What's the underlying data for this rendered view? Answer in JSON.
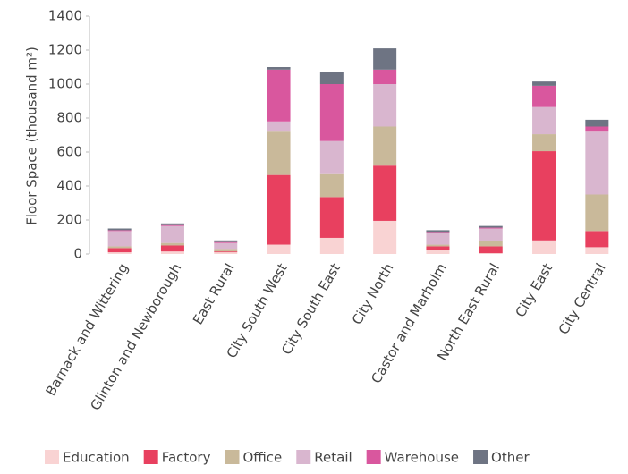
{
  "chart_data": {
    "type": "stacked_bar",
    "ylabel": "Floor Space (thousand m²)",
    "categories": [
      "Barnack and Wittering",
      "Glinton and Newborough",
      "East Rural",
      "City South West",
      "City South East",
      "City North",
      "Castor and Marholm",
      "North East Rural",
      "City East",
      "City Central"
    ],
    "series": [
      {
        "name": "Education",
        "color": "#f9d3d3",
        "values": [
          10,
          15,
          10,
          55,
          95,
          195,
          25,
          5,
          80,
          40
        ]
      },
      {
        "name": "Factory",
        "color": "#e8405f",
        "values": [
          25,
          35,
          5,
          410,
          240,
          325,
          20,
          40,
          525,
          95
        ]
      },
      {
        "name": "Office",
        "color": "#c9b99a",
        "values": [
          10,
          15,
          15,
          255,
          140,
          230,
          10,
          30,
          100,
          215
        ]
      },
      {
        "name": "Retail",
        "color": "#d9b6cf",
        "values": [
          90,
          100,
          35,
          60,
          190,
          250,
          70,
          75,
          160,
          370
        ]
      },
      {
        "name": "Warehouse",
        "color": "#d9579e",
        "values": [
          5,
          5,
          5,
          305,
          335,
          85,
          5,
          5,
          125,
          30
        ]
      },
      {
        "name": "Other",
        "color": "#6e7483",
        "values": [
          10,
          10,
          10,
          15,
          70,
          125,
          10,
          10,
          25,
          40
        ]
      }
    ],
    "ylim": [
      0,
      1400
    ],
    "yticks": [
      0,
      200,
      400,
      600,
      800,
      1000,
      1200,
      1400
    ],
    "grid": false,
    "legend": "bottom"
  }
}
